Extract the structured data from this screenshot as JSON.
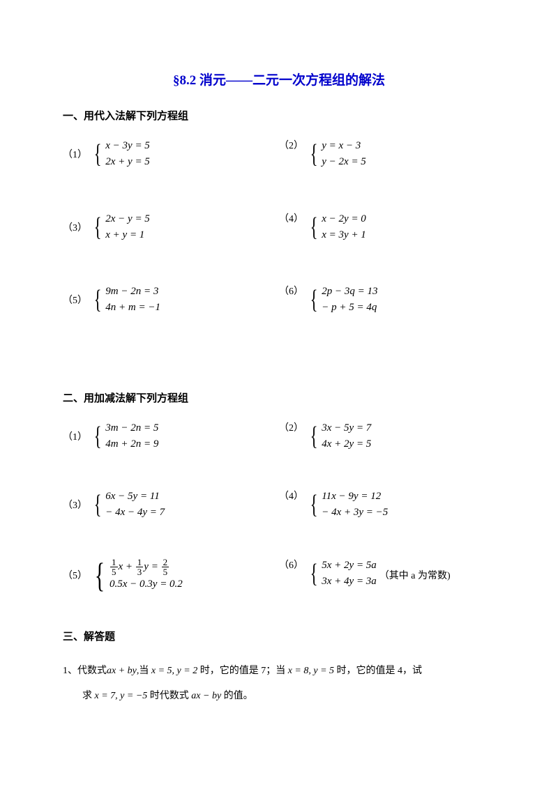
{
  "title": "§8.2 消元——二元一次方程组的解法",
  "section1": {
    "heading": "一、用代入法解下列方程组",
    "items": [
      {
        "num": "（1）",
        "eq1": "x − 3y = 5",
        "eq2": "2x + y = 5"
      },
      {
        "num": "（2）",
        "eq1": "y = x − 3",
        "eq2": "y − 2x = 5"
      },
      {
        "num": "（3）",
        "eq1": "2x − y = 5",
        "eq2": "x + y = 1"
      },
      {
        "num": "（4）",
        "eq1": "x − 2y = 0",
        "eq2": "x = 3y + 1"
      },
      {
        "num": "（5）",
        "eq1": "9m − 2n = 3",
        "eq2": "4n + m = −1"
      },
      {
        "num": "（6）",
        "eq1": "2p − 3q = 13",
        "eq2": "− p + 5 = 4q"
      }
    ]
  },
  "section2": {
    "heading": "二、用加减法解下列方程组",
    "items": [
      {
        "num": "（1）",
        "eq1": "3m − 2n = 5",
        "eq2": "4m + 2n = 9"
      },
      {
        "num": "（2）",
        "eq1": "3x − 5y = 7",
        "eq2": "4x + 2y = 5"
      },
      {
        "num": "（3）",
        "eq1": "6x − 5y = 11",
        "eq2": "− 4x − 4y = 7"
      },
      {
        "num": "（4）",
        "eq1": "11x − 9y = 12",
        "eq2": "− 4x + 3y = −5"
      },
      {
        "num": "（5）",
        "frac1_rhs": "2",
        "frac1_rhs_d": "5",
        "eq2": "0.5x − 0.3y = 0.2"
      },
      {
        "num": "（6）",
        "eq1": "5x + 2y = 5a",
        "eq2": "3x + 4y = 3a",
        "trail": "（其中 a 为常数)"
      }
    ]
  },
  "section3": {
    "heading": "三、解答题",
    "q_num": "1、",
    "line1_a": "代数式",
    "line1_b": "ax + by",
    "line1_c": ",当",
    "line1_d": "x = 5, y = 2",
    "line1_e": "时，它的值是 7；当",
    "line1_f": "x = 8, y = 5",
    "line1_g": "时，它的值是 4，试",
    "line2_a": "求",
    "line2_b": "x = 7, y = −5",
    "line2_c": "时代数式",
    "line2_d": "ax − by",
    "line2_e": "的值。"
  },
  "colors": {
    "title": "#0000cc",
    "text": "#000000",
    "background": "#ffffff"
  }
}
